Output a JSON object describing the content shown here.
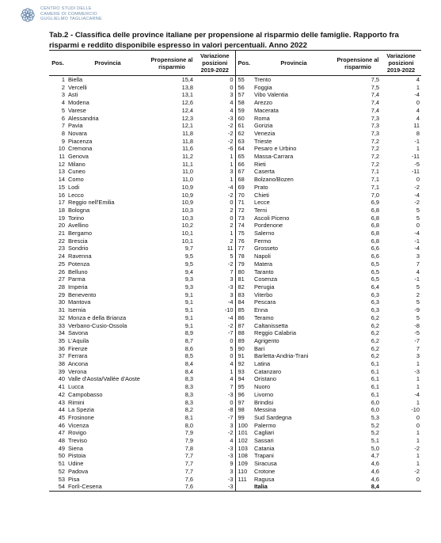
{
  "header": {
    "logo_lines": [
      "CENTRO STUDI DELLE",
      "CAMERE DI COMMERCIO",
      "GUGLIELMO TAGLIACARNE"
    ],
    "title": "Tab.2 - Classifica delle province italiane per propensione al risparmio delle famiglie. Rapporto fra risparmi e reddito disponibile espresso in valori percentuali. Anno 2022"
  },
  "table": {
    "col_pos": "Pos.",
    "col_provincia": "Provincia",
    "col_propensione": "Propensione al risparmio",
    "col_variazione": "Variazione posizioni 2019-2022",
    "left_rows": [
      {
        "pos": "1",
        "prov": "Biella",
        "prop": "15,4",
        "var": "0"
      },
      {
        "pos": "2",
        "prov": "Vercelli",
        "prop": "13,8",
        "var": "0"
      },
      {
        "pos": "3",
        "prov": "Asti",
        "prop": "13,1",
        "var": "3"
      },
      {
        "pos": "4",
        "prov": "Modena",
        "prop": "12,6",
        "var": "4"
      },
      {
        "pos": "5",
        "prov": "Varese",
        "prop": "12,4",
        "var": "4"
      },
      {
        "pos": "6",
        "prov": "Alessandria",
        "prop": "12,3",
        "var": "-3"
      },
      {
        "pos": "7",
        "prov": "Pavia",
        "prop": "12,1",
        "var": "-2"
      },
      {
        "pos": "8",
        "prov": "Novara",
        "prop": "11,8",
        "var": "-2"
      },
      {
        "pos": "9",
        "prov": "Piacenza",
        "prop": "11,8",
        "var": "-2"
      },
      {
        "pos": "10",
        "prov": "Cremona",
        "prop": "11,6",
        "var": "-6"
      },
      {
        "pos": "11",
        "prov": "Genova",
        "prop": "11,2",
        "var": "1"
      },
      {
        "pos": "12",
        "prov": "Milano",
        "prop": "11,1",
        "var": "1"
      },
      {
        "pos": "13",
        "prov": "Cuneo",
        "prop": "11,0",
        "var": "3"
      },
      {
        "pos": "14",
        "prov": "Como",
        "prop": "11,0",
        "var": "1"
      },
      {
        "pos": "15",
        "prov": "Lodi",
        "prop": "10,9",
        "var": "-4"
      },
      {
        "pos": "16",
        "prov": "Lecco",
        "prop": "10,9",
        "var": "-2"
      },
      {
        "pos": "17",
        "prov": "Reggio nell'Emilia",
        "prop": "10,9",
        "var": "0"
      },
      {
        "pos": "18",
        "prov": "Bologna",
        "prop": "10,3",
        "var": "2"
      },
      {
        "pos": "19",
        "prov": "Torino",
        "prop": "10,3",
        "var": "0"
      },
      {
        "pos": "20",
        "prov": "Avellino",
        "prop": "10,2",
        "var": "2"
      },
      {
        "pos": "21",
        "prov": "Bergamo",
        "prop": "10,1",
        "var": "1"
      },
      {
        "pos": "22",
        "prov": "Brescia",
        "prop": "10,1",
        "var": "2"
      },
      {
        "pos": "23",
        "prov": "Sondrio",
        "prop": "9,7",
        "var": "11"
      },
      {
        "pos": "24",
        "prov": "Ravenna",
        "prop": "9,5",
        "var": "5"
      },
      {
        "pos": "25",
        "prov": "Potenza",
        "prop": "9,5",
        "var": "-2"
      },
      {
        "pos": "26",
        "prov": "Belluno",
        "prop": "9,4",
        "var": "7"
      },
      {
        "pos": "27",
        "prov": "Parma",
        "prop": "9,3",
        "var": "3"
      },
      {
        "pos": "28",
        "prov": "Imperia",
        "prop": "9,3",
        "var": "-3"
      },
      {
        "pos": "29",
        "prov": "Benevento",
        "prop": "9,1",
        "var": "3"
      },
      {
        "pos": "30",
        "prov": "Mantova",
        "prop": "9,1",
        "var": "-4"
      },
      {
        "pos": "31",
        "prov": "Isernia",
        "prop": "9,1",
        "var": "-10"
      },
      {
        "pos": "32",
        "prov": "Monza e della Brianza",
        "prop": "9,1",
        "var": "-4"
      },
      {
        "pos": "33",
        "prov": "Verbano-Cusio-Ossola",
        "prop": "9,1",
        "var": "-2"
      },
      {
        "pos": "34",
        "prov": "Savona",
        "prop": "8,9",
        "var": "-7"
      },
      {
        "pos": "35",
        "prov": "L'Aquila",
        "prop": "8,7",
        "var": "0"
      },
      {
        "pos": "36",
        "prov": "Firenze",
        "prop": "8,6",
        "var": "5"
      },
      {
        "pos": "37",
        "prov": "Ferrara",
        "prop": "8,5",
        "var": "0"
      },
      {
        "pos": "38",
        "prov": "Ancona",
        "prop": "8,4",
        "var": "4"
      },
      {
        "pos": "39",
        "prov": "Verona",
        "prop": "8,4",
        "var": "1"
      },
      {
        "pos": "40",
        "prov": "Valle d'Aosta/Vallée d'Aoste",
        "prop": "8,3",
        "var": "4"
      },
      {
        "pos": "41",
        "prov": "Lucca",
        "prop": "8,3",
        "var": "7"
      },
      {
        "pos": "42",
        "prov": "Campobasso",
        "prop": "8,3",
        "var": "-3"
      },
      {
        "pos": "43",
        "prov": "Rimini",
        "prop": "8,3",
        "var": "0"
      },
      {
        "pos": "44",
        "prov": "La Spezia",
        "prop": "8,2",
        "var": "-8"
      },
      {
        "pos": "45",
        "prov": "Frosinone",
        "prop": "8,1",
        "var": "-7"
      },
      {
        "pos": "46",
        "prov": "Vicenza",
        "prop": "8,0",
        "var": "3"
      },
      {
        "pos": "47",
        "prov": "Rovigo",
        "prop": "7,9",
        "var": "-2"
      },
      {
        "pos": "48",
        "prov": "Treviso",
        "prop": "7,9",
        "var": "4"
      },
      {
        "pos": "49",
        "prov": "Siena",
        "prop": "7,8",
        "var": "-3"
      },
      {
        "pos": "50",
        "prov": "Pistoia",
        "prop": "7,7",
        "var": "-3"
      },
      {
        "pos": "51",
        "prov": "Udine",
        "prop": "7,7",
        "var": "9"
      },
      {
        "pos": "52",
        "prov": "Padova",
        "prop": "7,7",
        "var": "3"
      },
      {
        "pos": "53",
        "prov": "Pisa",
        "prop": "7,6",
        "var": "-3"
      },
      {
        "pos": "54",
        "prov": "Forlì-Cesena",
        "prop": "7,6",
        "var": "-3"
      }
    ],
    "right_rows": [
      {
        "pos": "55",
        "prov": "Trento",
        "prop": "7,5",
        "var": "4"
      },
      {
        "pos": "56",
        "prov": "Foggia",
        "prop": "7,5",
        "var": "1"
      },
      {
        "pos": "57",
        "prov": "Vibo Valentia",
        "prop": "7,4",
        "var": "-4"
      },
      {
        "pos": "58",
        "prov": "Arezzo",
        "prop": "7,4",
        "var": "0"
      },
      {
        "pos": "59",
        "prov": "Macerata",
        "prop": "7,4",
        "var": "4"
      },
      {
        "pos": "60",
        "prov": "Roma",
        "prop": "7,3",
        "var": "4"
      },
      {
        "pos": "61",
        "prov": "Gorizia",
        "prop": "7,3",
        "var": "11"
      },
      {
        "pos": "62",
        "prov": "Venezia",
        "prop": "7,3",
        "var": "8"
      },
      {
        "pos": "63",
        "prov": "Trieste",
        "prop": "7,2",
        "var": "-1"
      },
      {
        "pos": "64",
        "prov": "Pesaro e Urbino",
        "prop": "7,2",
        "var": "1"
      },
      {
        "pos": "65",
        "prov": "Massa-Carrara",
        "prop": "7,2",
        "var": "-11"
      },
      {
        "pos": "66",
        "prov": "Rieti",
        "prop": "7,2",
        "var": "-5"
      },
      {
        "pos": "67",
        "prov": "Caserta",
        "prop": "7,1",
        "var": "-11"
      },
      {
        "pos": "68",
        "prov": "Bolzano/Bozen",
        "prop": "7,1",
        "var": "0"
      },
      {
        "pos": "69",
        "prov": "Prato",
        "prop": "7,1",
        "var": "-2"
      },
      {
        "pos": "70",
        "prov": "Chieti",
        "prop": "7,0",
        "var": "-4"
      },
      {
        "pos": "71",
        "prov": "Lecce",
        "prop": "6,9",
        "var": "-2"
      },
      {
        "pos": "72",
        "prov": "Terni",
        "prop": "6,8",
        "var": "5"
      },
      {
        "pos": "73",
        "prov": "Ascoli Piceno",
        "prop": "6,8",
        "var": "5"
      },
      {
        "pos": "74",
        "prov": "Pordenone",
        "prop": "6,8",
        "var": "0"
      },
      {
        "pos": "75",
        "prov": "Salerno",
        "prop": "6,8",
        "var": "-4"
      },
      {
        "pos": "76",
        "prov": "Fermo",
        "prop": "6,8",
        "var": "-1"
      },
      {
        "pos": "77",
        "prov": "Grosseto",
        "prop": "6,6",
        "var": "-4"
      },
      {
        "pos": "78",
        "prov": "Napoli",
        "prop": "6,6",
        "var": "3"
      },
      {
        "pos": "79",
        "prov": "Matera",
        "prop": "6,5",
        "var": "7"
      },
      {
        "pos": "80",
        "prov": "Taranto",
        "prop": "6,5",
        "var": "4"
      },
      {
        "pos": "81",
        "prov": "Cosenza",
        "prop": "6,5",
        "var": "-1"
      },
      {
        "pos": "82",
        "prov": "Perugia",
        "prop": "6,4",
        "var": "5"
      },
      {
        "pos": "83",
        "prov": "Viterbo",
        "prop": "6,3",
        "var": "2"
      },
      {
        "pos": "84",
        "prov": "Pescara",
        "prop": "6,3",
        "var": "5"
      },
      {
        "pos": "85",
        "prov": "Enna",
        "prop": "6,3",
        "var": "-9"
      },
      {
        "pos": "86",
        "prov": "Teramo",
        "prop": "6,2",
        "var": "5"
      },
      {
        "pos": "87",
        "prov": "Caltanissetta",
        "prop": "6,2",
        "var": "-8"
      },
      {
        "pos": "88",
        "prov": "Reggio Calabria",
        "prop": "6,2",
        "var": "-5"
      },
      {
        "pos": "89",
        "prov": "Agrigento",
        "prop": "6,2",
        "var": "-7"
      },
      {
        "pos": "90",
        "prov": "Bari",
        "prop": "6,2",
        "var": "7"
      },
      {
        "pos": "91",
        "prov": "Barletta-Andria-Trani",
        "prop": "6,2",
        "var": "3"
      },
      {
        "pos": "92",
        "prov": "Latina",
        "prop": "6,1",
        "var": "1"
      },
      {
        "pos": "93",
        "prov": "Catanzaro",
        "prop": "6,1",
        "var": "-3"
      },
      {
        "pos": "94",
        "prov": "Oristano",
        "prop": "6,1",
        "var": "1"
      },
      {
        "pos": "95",
        "prov": "Nuoro",
        "prop": "6,1",
        "var": "1"
      },
      {
        "pos": "96",
        "prov": "Livorno",
        "prop": "6,1",
        "var": "-4"
      },
      {
        "pos": "97",
        "prov": "Brindisi",
        "prop": "6,0",
        "var": "1"
      },
      {
        "pos": "98",
        "prov": "Messina",
        "prop": "6,0",
        "var": "-10"
      },
      {
        "pos": "99",
        "prov": "Sud Sardegna",
        "prop": "5,3",
        "var": "0"
      },
      {
        "pos": "100",
        "prov": "Palermo",
        "prop": "5,2",
        "var": "0"
      },
      {
        "pos": "101",
        "prov": "Cagliari",
        "prop": "5,2",
        "var": "1"
      },
      {
        "pos": "102",
        "prov": "Sassari",
        "prop": "5,1",
        "var": "1"
      },
      {
        "pos": "103",
        "prov": "Catania",
        "prop": "5,0",
        "var": "-2"
      },
      {
        "pos": "108",
        "prov": "Trapani",
        "prop": "4,7",
        "var": "1"
      },
      {
        "pos": "109",
        "prov": "Siracusa",
        "prop": "4,6",
        "var": "1"
      },
      {
        "pos": "110",
        "prov": "Crotone",
        "prop": "4,6",
        "var": "-2"
      },
      {
        "pos": "111",
        "prov": "Ragusa",
        "prop": "4,6",
        "var": "0"
      },
      {
        "pos": "",
        "prov": "Italia",
        "prop": "8,4",
        "var": "",
        "bold": true
      }
    ]
  },
  "colors": {
    "logo": "#6f8fb0",
    "rule": "#222222",
    "text": "#111111"
  }
}
